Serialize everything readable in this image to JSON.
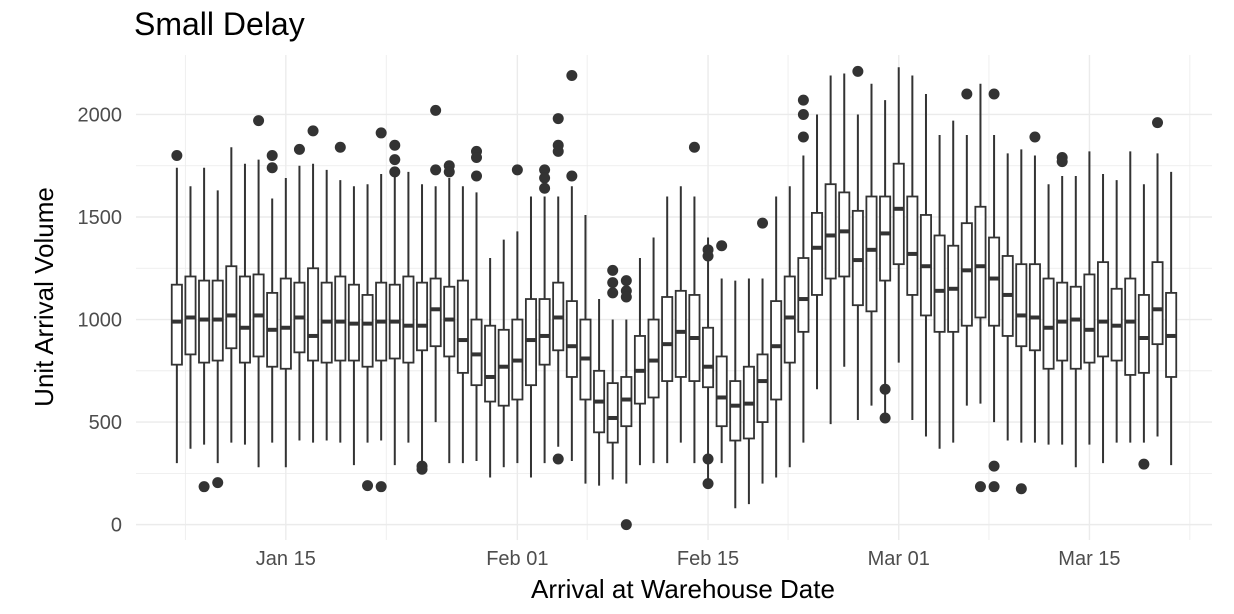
{
  "chart_data": {
    "type": "boxplot",
    "title": "Small Delay",
    "xlabel": "Arrival at Warehouse Date",
    "ylabel": "Unit Arrival Volume",
    "x_ticks": [
      "Jan 15",
      "Feb 01",
      "Feb 15",
      "Mar 01",
      "Mar 15"
    ],
    "y_ticks": [
      0,
      500,
      1000,
      1500,
      2000
    ],
    "ylim": [
      -75,
      2290
    ],
    "xlim": [
      "2025-01-04",
      "2025-03-24"
    ],
    "grid": true,
    "colors": {
      "box": "#333333",
      "fill": "#ffffff",
      "grid": "#ebebeb"
    },
    "boxes": [
      {
        "date": "2025-01-07",
        "low": 300,
        "q1": 780,
        "median": 990,
        "q3": 1170,
        "high": 1740,
        "outliers": [
          1800
        ]
      },
      {
        "date": "2025-01-08",
        "low": 370,
        "q1": 830,
        "median": 1010,
        "q3": 1210,
        "high": 1650,
        "outliers": []
      },
      {
        "date": "2025-01-09",
        "low": 390,
        "q1": 790,
        "median": 1000,
        "q3": 1190,
        "high": 1740,
        "outliers": [
          185
        ]
      },
      {
        "date": "2025-01-10",
        "low": 300,
        "q1": 800,
        "median": 1000,
        "q3": 1190,
        "high": 1630,
        "outliers": [
          205
        ]
      },
      {
        "date": "2025-01-11",
        "low": 400,
        "q1": 860,
        "median": 1020,
        "q3": 1260,
        "high": 1840,
        "outliers": []
      },
      {
        "date": "2025-01-12",
        "low": 390,
        "q1": 790,
        "median": 960,
        "q3": 1210,
        "high": 1760,
        "outliers": []
      },
      {
        "date": "2025-01-13",
        "low": 280,
        "q1": 820,
        "median": 1020,
        "q3": 1220,
        "high": 1780,
        "outliers": [
          1970
        ]
      },
      {
        "date": "2025-01-14",
        "low": 400,
        "q1": 770,
        "median": 950,
        "q3": 1130,
        "high": 1590,
        "outliers": [
          1800,
          1740
        ]
      },
      {
        "date": "2025-01-15",
        "low": 280,
        "q1": 760,
        "median": 960,
        "q3": 1200,
        "high": 1690,
        "outliers": []
      },
      {
        "date": "2025-01-16",
        "low": 410,
        "q1": 840,
        "median": 1010,
        "q3": 1180,
        "high": 1750,
        "outliers": [
          1830
        ]
      },
      {
        "date": "2025-01-17",
        "low": 400,
        "q1": 800,
        "median": 920,
        "q3": 1250,
        "high": 1760,
        "outliers": [
          1920
        ]
      },
      {
        "date": "2025-01-18",
        "low": 410,
        "q1": 790,
        "median": 990,
        "q3": 1180,
        "high": 1730,
        "outliers": []
      },
      {
        "date": "2025-01-19",
        "low": 400,
        "q1": 800,
        "median": 990,
        "q3": 1210,
        "high": 1680,
        "outliers": [
          1840
        ]
      },
      {
        "date": "2025-01-20",
        "low": 290,
        "q1": 800,
        "median": 980,
        "q3": 1170,
        "high": 1650,
        "outliers": []
      },
      {
        "date": "2025-01-21",
        "low": 400,
        "q1": 770,
        "median": 980,
        "q3": 1120,
        "high": 1660,
        "outliers": [
          190
        ]
      },
      {
        "date": "2025-01-22",
        "low": 410,
        "q1": 800,
        "median": 990,
        "q3": 1180,
        "high": 1710,
        "outliers": [
          1910,
          185
        ]
      },
      {
        "date": "2025-01-23",
        "low": 290,
        "q1": 810,
        "median": 990,
        "q3": 1170,
        "high": 1700,
        "outliers": [
          1850,
          1780,
          1720
        ]
      },
      {
        "date": "2025-01-24",
        "low": 400,
        "q1": 790,
        "median": 970,
        "q3": 1210,
        "high": 1720,
        "outliers": []
      },
      {
        "date": "2025-01-25",
        "low": 300,
        "q1": 850,
        "median": 970,
        "q3": 1180,
        "high": 1660,
        "outliers": [
          285,
          270
        ]
      },
      {
        "date": "2025-01-26",
        "low": 500,
        "q1": 870,
        "median": 1050,
        "q3": 1200,
        "high": 1650,
        "outliers": [
          2020,
          1730
        ]
      },
      {
        "date": "2025-01-27",
        "low": 300,
        "q1": 820,
        "median": 1000,
        "q3": 1160,
        "high": 1690,
        "outliers": [
          1750,
          1720
        ]
      },
      {
        "date": "2025-01-28",
        "low": 300,
        "q1": 740,
        "median": 900,
        "q3": 1190,
        "high": 1650,
        "outliers": []
      },
      {
        "date": "2025-01-29",
        "low": 310,
        "q1": 680,
        "median": 830,
        "q3": 1000,
        "high": 1620,
        "outliers": [
          1820,
          1790,
          1700
        ]
      },
      {
        "date": "2025-01-30",
        "low": 230,
        "q1": 600,
        "median": 720,
        "q3": 970,
        "high": 1300,
        "outliers": []
      },
      {
        "date": "2025-01-31",
        "low": 280,
        "q1": 580,
        "median": 770,
        "q3": 950,
        "high": 1390,
        "outliers": []
      },
      {
        "date": "2025-02-01",
        "low": 300,
        "q1": 610,
        "median": 800,
        "q3": 1000,
        "high": 1430,
        "outliers": [
          1730
        ]
      },
      {
        "date": "2025-02-02",
        "low": 230,
        "q1": 680,
        "median": 900,
        "q3": 1100,
        "high": 1600,
        "outliers": []
      },
      {
        "date": "2025-02-03",
        "low": 300,
        "q1": 780,
        "median": 920,
        "q3": 1100,
        "high": 1600,
        "outliers": [
          1730,
          1690,
          1640
        ]
      },
      {
        "date": "2025-02-04",
        "low": 380,
        "q1": 850,
        "median": 1010,
        "q3": 1180,
        "high": 1600,
        "outliers": [
          1980,
          1850,
          1820,
          320
        ]
      },
      {
        "date": "2025-02-05",
        "low": 310,
        "q1": 720,
        "median": 870,
        "q3": 1090,
        "high": 1650,
        "outliers": [
          2190,
          1700
        ]
      },
      {
        "date": "2025-02-06",
        "low": 200,
        "q1": 610,
        "median": 810,
        "q3": 1000,
        "high": 1510,
        "outliers": []
      },
      {
        "date": "2025-02-07",
        "low": 190,
        "q1": 450,
        "median": 600,
        "q3": 750,
        "high": 1100,
        "outliers": []
      },
      {
        "date": "2025-02-08",
        "low": 220,
        "q1": 400,
        "median": 520,
        "q3": 690,
        "high": 1000,
        "outliers": [
          1240,
          1180,
          1130
        ]
      },
      {
        "date": "2025-02-09",
        "low": 200,
        "q1": 480,
        "median": 610,
        "q3": 720,
        "high": 1000,
        "outliers": [
          1190,
          1140,
          1110,
          0
        ]
      },
      {
        "date": "2025-02-10",
        "low": 290,
        "q1": 590,
        "median": 750,
        "q3": 920,
        "high": 1300,
        "outliers": []
      },
      {
        "date": "2025-02-11",
        "low": 300,
        "q1": 620,
        "median": 800,
        "q3": 1000,
        "high": 1400,
        "outliers": []
      },
      {
        "date": "2025-02-12",
        "low": 300,
        "q1": 700,
        "median": 880,
        "q3": 1110,
        "high": 1600,
        "outliers": []
      },
      {
        "date": "2025-02-13",
        "low": 400,
        "q1": 720,
        "median": 940,
        "q3": 1140,
        "high": 1650,
        "outliers": []
      },
      {
        "date": "2025-02-14",
        "low": 300,
        "q1": 700,
        "median": 910,
        "q3": 1120,
        "high": 1600,
        "outliers": [
          1840
        ]
      },
      {
        "date": "2025-02-15",
        "low": 200,
        "q1": 670,
        "median": 770,
        "q3": 960,
        "high": 1400,
        "outliers": [
          1340,
          1310,
          320,
          200
        ]
      },
      {
        "date": "2025-02-16",
        "low": 300,
        "q1": 480,
        "median": 620,
        "q3": 820,
        "high": 1200,
        "outliers": [
          1360
        ]
      },
      {
        "date": "2025-02-17",
        "low": 80,
        "q1": 410,
        "median": 580,
        "q3": 700,
        "high": 1190,
        "outliers": []
      },
      {
        "date": "2025-02-18",
        "low": 100,
        "q1": 420,
        "median": 590,
        "q3": 770,
        "high": 1200,
        "outliers": []
      },
      {
        "date": "2025-02-19",
        "low": 200,
        "q1": 500,
        "median": 700,
        "q3": 830,
        "high": 1200,
        "outliers": [
          1470
        ]
      },
      {
        "date": "2025-02-20",
        "low": 230,
        "q1": 610,
        "median": 870,
        "q3": 1090,
        "high": 1600,
        "outliers": []
      },
      {
        "date": "2025-02-21",
        "low": 280,
        "q1": 790,
        "median": 1010,
        "q3": 1210,
        "high": 1650,
        "outliers": []
      },
      {
        "date": "2025-02-22",
        "low": 400,
        "q1": 940,
        "median": 1100,
        "q3": 1300,
        "high": 1800,
        "outliers": [
          2070,
          2000,
          1890
        ]
      },
      {
        "date": "2025-02-23",
        "low": 660,
        "q1": 1120,
        "median": 1350,
        "q3": 1520,
        "high": 2000,
        "outliers": []
      },
      {
        "date": "2025-02-24",
        "low": 490,
        "q1": 1200,
        "median": 1410,
        "q3": 1660,
        "high": 2190,
        "outliers": []
      },
      {
        "date": "2025-02-25",
        "low": 770,
        "q1": 1210,
        "median": 1430,
        "q3": 1620,
        "high": 2200,
        "outliers": []
      },
      {
        "date": "2025-02-26",
        "low": 510,
        "q1": 1070,
        "median": 1290,
        "q3": 1530,
        "high": 2000,
        "outliers": [
          2210
        ]
      },
      {
        "date": "2025-02-27",
        "low": 580,
        "q1": 1040,
        "median": 1340,
        "q3": 1600,
        "high": 2150,
        "outliers": []
      },
      {
        "date": "2025-02-28",
        "low": 520,
        "q1": 1190,
        "median": 1420,
        "q3": 1600,
        "high": 2070,
        "outliers": [
          660,
          520
        ]
      },
      {
        "date": "2025-03-01",
        "low": 790,
        "q1": 1270,
        "median": 1540,
        "q3": 1760,
        "high": 2230,
        "outliers": []
      },
      {
        "date": "2025-03-02",
        "low": 510,
        "q1": 1120,
        "median": 1320,
        "q3": 1600,
        "high": 2190,
        "outliers": []
      },
      {
        "date": "2025-03-03",
        "low": 430,
        "q1": 1020,
        "median": 1260,
        "q3": 1510,
        "high": 2100,
        "outliers": []
      },
      {
        "date": "2025-03-04",
        "low": 370,
        "q1": 940,
        "median": 1140,
        "q3": 1410,
        "high": 1900,
        "outliers": []
      },
      {
        "date": "2025-03-05",
        "low": 400,
        "q1": 940,
        "median": 1150,
        "q3": 1360,
        "high": 1970,
        "outliers": []
      },
      {
        "date": "2025-03-06",
        "low": 580,
        "q1": 970,
        "median": 1240,
        "q3": 1470,
        "high": 1900,
        "outliers": [
          2100
        ]
      },
      {
        "date": "2025-03-07",
        "low": 590,
        "q1": 1010,
        "median": 1260,
        "q3": 1550,
        "high": 2150,
        "outliers": [
          185
        ]
      },
      {
        "date": "2025-03-08",
        "low": 500,
        "q1": 970,
        "median": 1200,
        "q3": 1400,
        "high": 1900,
        "outliers": [
          2100,
          285,
          185
        ]
      },
      {
        "date": "2025-03-09",
        "low": 410,
        "q1": 920,
        "median": 1120,
        "q3": 1310,
        "high": 1810,
        "outliers": []
      },
      {
        "date": "2025-03-10",
        "low": 400,
        "q1": 870,
        "median": 1020,
        "q3": 1270,
        "high": 1830,
        "outliers": [
          175
        ]
      },
      {
        "date": "2025-03-11",
        "low": 400,
        "q1": 850,
        "median": 1010,
        "q3": 1270,
        "high": 1800,
        "outliers": [
          1890
        ]
      },
      {
        "date": "2025-03-12",
        "low": 390,
        "q1": 760,
        "median": 960,
        "q3": 1200,
        "high": 1660,
        "outliers": []
      },
      {
        "date": "2025-03-13",
        "low": 390,
        "q1": 800,
        "median": 990,
        "q3": 1180,
        "high": 1700,
        "outliers": [
          1790,
          1770
        ]
      },
      {
        "date": "2025-03-14",
        "low": 280,
        "q1": 760,
        "median": 1000,
        "q3": 1160,
        "high": 1700,
        "outliers": []
      },
      {
        "date": "2025-03-15",
        "low": 390,
        "q1": 790,
        "median": 950,
        "q3": 1220,
        "high": 1820,
        "outliers": []
      },
      {
        "date": "2025-03-16",
        "low": 300,
        "q1": 820,
        "median": 990,
        "q3": 1280,
        "high": 1710,
        "outliers": []
      },
      {
        "date": "2025-03-17",
        "low": 400,
        "q1": 800,
        "median": 970,
        "q3": 1150,
        "high": 1680,
        "outliers": []
      },
      {
        "date": "2025-03-18",
        "low": 400,
        "q1": 730,
        "median": 990,
        "q3": 1200,
        "high": 1820,
        "outliers": []
      },
      {
        "date": "2025-03-19",
        "low": 400,
        "q1": 740,
        "median": 910,
        "q3": 1120,
        "high": 1660,
        "outliers": [
          295
        ]
      },
      {
        "date": "2025-03-20",
        "low": 430,
        "q1": 880,
        "median": 1050,
        "q3": 1280,
        "high": 1810,
        "outliers": [
          1960
        ]
      },
      {
        "date": "2025-03-21",
        "low": 290,
        "q1": 720,
        "median": 920,
        "q3": 1130,
        "high": 1720,
        "outliers": []
      }
    ]
  }
}
